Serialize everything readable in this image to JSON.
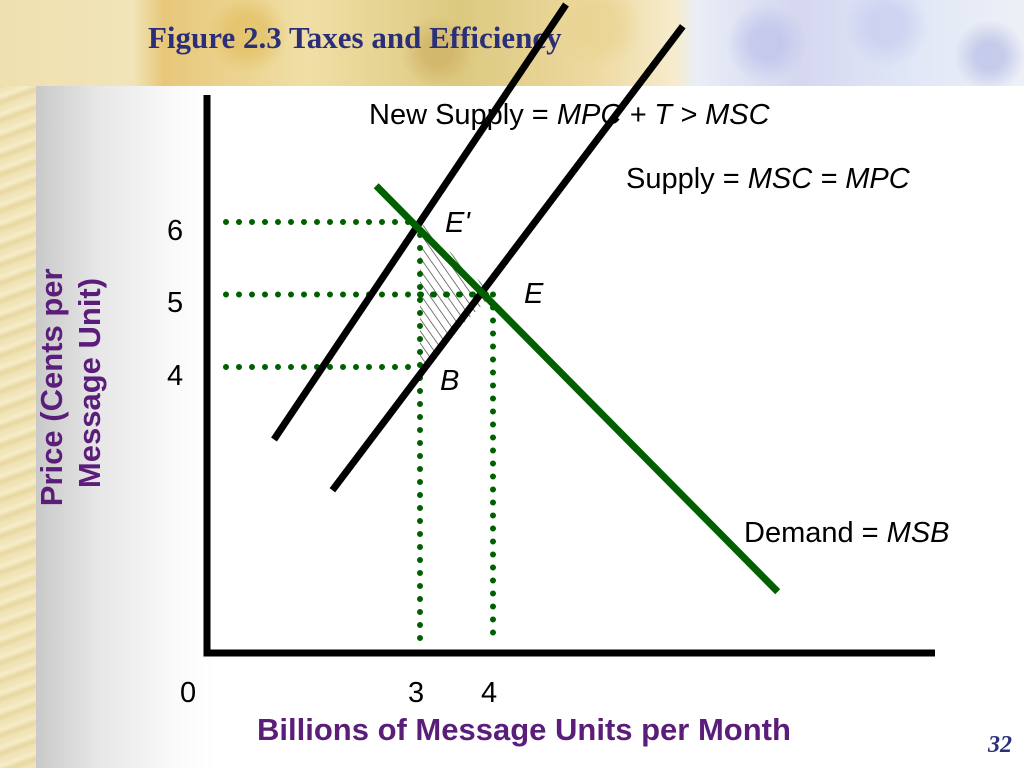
{
  "slide": {
    "title": "Figure 2.3 Taxes and Efficiency",
    "page_number": "32"
  },
  "chart_data": {
    "type": "line",
    "xlabel": "Billions of Message Units per Month",
    "ylabel": "Price (Cents per Message Unit)",
    "origin_label": "0",
    "x_ticks": [
      "3",
      "4"
    ],
    "y_ticks": [
      "6",
      "5",
      "4"
    ],
    "series": [
      {
        "name": "New Supply",
        "label_plain": "New Supply =",
        "label_italic": "MPC + T > MSC",
        "color": "#000000",
        "x": [
          1.0,
          3.0,
          5.0
        ],
        "y": [
          3.0,
          6.0,
          9.0
        ]
      },
      {
        "name": "Supply",
        "label_plain": "Supply =",
        "label_italic": "MSC = MPC",
        "color": "#000000",
        "x": [
          1.8,
          3.0,
          4.0,
          6.6
        ],
        "y": [
          2.3,
          4.0,
          5.0,
          8.7
        ]
      },
      {
        "name": "Demand",
        "label_plain": "Demand =",
        "label_italic": "MSB",
        "color": "#006000",
        "x": [
          2.4,
          3.0,
          4.0,
          7.9
        ],
        "y": [
          6.5,
          6.0,
          5.0,
          0.9
        ]
      }
    ],
    "points": [
      {
        "label": "E'",
        "x": 3,
        "y": 6
      },
      {
        "label": "E",
        "x": 4,
        "y": 5
      },
      {
        "label": "B",
        "x": 3,
        "y": 4
      }
    ],
    "deadweight_loss_triangle": [
      [
        3,
        6
      ],
      [
        4,
        5
      ],
      [
        3,
        4
      ]
    ],
    "guide_color": "#006000"
  }
}
